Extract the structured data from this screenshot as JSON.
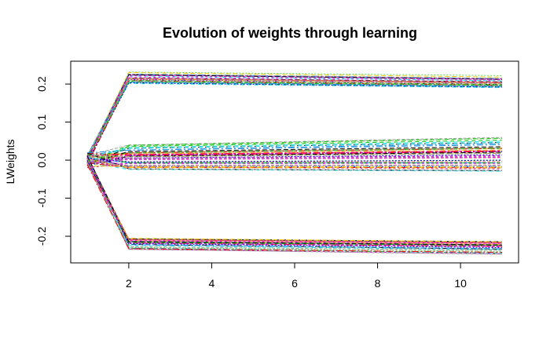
{
  "chart_data": {
    "type": "line",
    "title": "Evolution of weights through learning",
    "xlabel": "",
    "ylabel": "LWeights",
    "xlim": [
      0.6,
      11.4
    ],
    "ylim": [
      -0.27,
      0.26
    ],
    "x_ticks": [
      2,
      4,
      6,
      8,
      10
    ],
    "y_ticks": [
      -0.2,
      -0.1,
      0.0,
      0.1,
      0.2
    ],
    "y_tick_labels": [
      "-0.2",
      "-0.1",
      "0.0",
      "0.1",
      "0.2"
    ],
    "x": [
      1,
      2,
      3,
      4,
      5,
      6,
      7,
      8,
      9,
      10,
      11
    ],
    "line_style": "dashed",
    "palette": [
      "#000000",
      "#DF536B",
      "#61D04F",
      "#2297E6",
      "#28E2E5",
      "#CD0BBC",
      "#F5C710",
      "#9E9E9E",
      "#0000FF",
      "#FF0000",
      "#00C000",
      "#FF00FF"
    ],
    "groups": [
      {
        "id": "positive",
        "count": 30,
        "start": [
          -0.012,
          0.012
        ],
        "at_x2": [
          0.198,
          0.236
        ],
        "at_x11": [
          0.186,
          0.226
        ]
      },
      {
        "id": "middle",
        "count": 50,
        "start": [
          -0.02,
          0.02
        ],
        "at_x2": [
          -0.025,
          0.04
        ],
        "at_x11": [
          -0.03,
          0.06
        ]
      },
      {
        "id": "negative",
        "count": 30,
        "start": [
          -0.012,
          0.012
        ],
        "at_x2": [
          -0.236,
          -0.202
        ],
        "at_x11": [
          -0.248,
          -0.21
        ]
      }
    ]
  }
}
